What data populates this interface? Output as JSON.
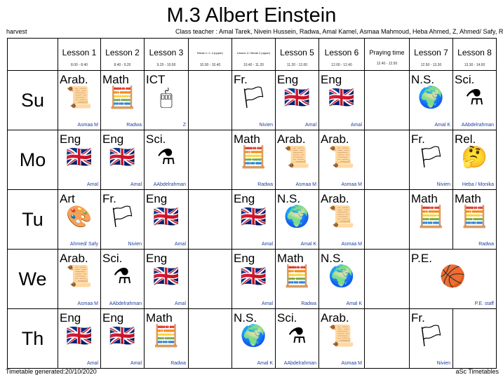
{
  "header": {
    "title": "M.3 Albert Einstein",
    "school": "harvest",
    "class_teacher": "Class teacher : Amal Tarek, Nivein Hussein, Radwa, Amal Kamel, Asmaa Mahmoud, Heba Ahmed, Z, Ahmed/ Safy, R"
  },
  "columns": [
    {
      "label": "Lesson 1",
      "time": "8.00 - 8.40"
    },
    {
      "label": "Lesson 2",
      "time": "8.40 - 9.20"
    },
    {
      "label": "Lesson 3",
      "time": "9.20 - 10.00"
    },
    {
      "label": "Break 1 / L.4 (upper)",
      "time": "10.00 - 10.40",
      "small": true
    },
    {
      "label": "Lesson 4 / Break 2 (upper)",
      "time": "10.40 - 11.20",
      "small": true
    },
    {
      "label": "Lesson 5",
      "time": "11.20 - 12.00"
    },
    {
      "label": "Lesson 6",
      "time": "12.00 - 12.40"
    },
    {
      "label": "Praying time",
      "time": "12.40 - 12.50",
      "medium": true
    },
    {
      "label": "Lesson 7",
      "time": "12.50 - 13.30"
    },
    {
      "label": "Lesson 8",
      "time": "13.30 - 14.00"
    }
  ],
  "icons": {
    "Arab.": "scroll-icon",
    "Math": "calculator-icon",
    "ICT": "mouse-icon",
    "Fr.": "french-flag-icon",
    "Eng": "uk-flag-icon",
    "N.S.": "globe-icon",
    "Sci.": "beaker-icon",
    "Rel.": "thinking-face-icon",
    "Art": "palette-icon",
    "P.E.": "sports-balls-icon"
  },
  "days": [
    {
      "day": "Su",
      "cells": [
        {
          "s": "Arab.",
          "t": "Asmaa M"
        },
        {
          "s": "Math",
          "t": "Radwa"
        },
        {
          "s": "ICT",
          "t": "Z"
        },
        null,
        {
          "s": "Fr.",
          "t": "Nivien"
        },
        {
          "s": "Eng",
          "t": "Amal"
        },
        {
          "s": "Eng",
          "t": "Amal"
        },
        null,
        {
          "s": "N.S.",
          "t": "Amal K"
        },
        {
          "s": "Sci.",
          "t": "AAbdelrahman"
        }
      ]
    },
    {
      "day": "Mo",
      "cells": [
        {
          "s": "Eng",
          "t": "Amal"
        },
        {
          "s": "Eng",
          "t": "Amal"
        },
        {
          "s": "Sci.",
          "t": "AAbdelrahman"
        },
        null,
        {
          "s": "Math",
          "t": "Radwa"
        },
        {
          "s": "Arab.",
          "t": "Asmaa M"
        },
        {
          "s": "Arab.",
          "t": "Asmaa M"
        },
        null,
        {
          "s": "Fr.",
          "t": "Nivien"
        },
        {
          "s": "Rel.",
          "t": "Heba / Monika"
        }
      ]
    },
    {
      "day": "Tu",
      "cells": [
        {
          "s": "Art",
          "t": "Ahmed/ Safy"
        },
        {
          "s": "Fr.",
          "t": "Nivien"
        },
        {
          "s": "Eng",
          "t": "Amal"
        },
        null,
        {
          "s": "Eng",
          "t": "Amal"
        },
        {
          "s": "N.S.",
          "t": "Amal K"
        },
        {
          "s": "Arab.",
          "t": "Asmaa M"
        },
        null,
        {
          "s": "Math",
          "t": ""
        },
        {
          "s": "Math",
          "t": "Radwa"
        }
      ]
    },
    {
      "day": "We",
      "cells": [
        {
          "s": "Arab.",
          "t": "Asmaa M"
        },
        {
          "s": "Sci.",
          "t": "AAbdelrahman"
        },
        {
          "s": "Eng",
          "t": "Amal"
        },
        null,
        {
          "s": "Eng",
          "t": "Amal"
        },
        {
          "s": "Math",
          "t": "Radwa"
        },
        {
          "s": "N.S.",
          "t": "Amal K"
        },
        null,
        {
          "s": "P.E.",
          "t": "P.E. staff",
          "span": 2
        }
      ]
    },
    {
      "day": "Th",
      "cells": [
        {
          "s": "Eng",
          "t": "Amal"
        },
        {
          "s": "Eng",
          "t": "Amal"
        },
        {
          "s": "Math",
          "t": "Radwa"
        },
        null,
        {
          "s": "N.S.",
          "t": "Amal K"
        },
        {
          "s": "Sci.",
          "t": "AAbdelrahman"
        },
        {
          "s": "Arab.",
          "t": "Asmaa M"
        },
        null,
        {
          "s": "Fr.",
          "t": "Nivien"
        },
        null
      ]
    }
  ],
  "footer": {
    "left": "Timetable generated:20/10/2020",
    "right": "aSc Timetables"
  }
}
